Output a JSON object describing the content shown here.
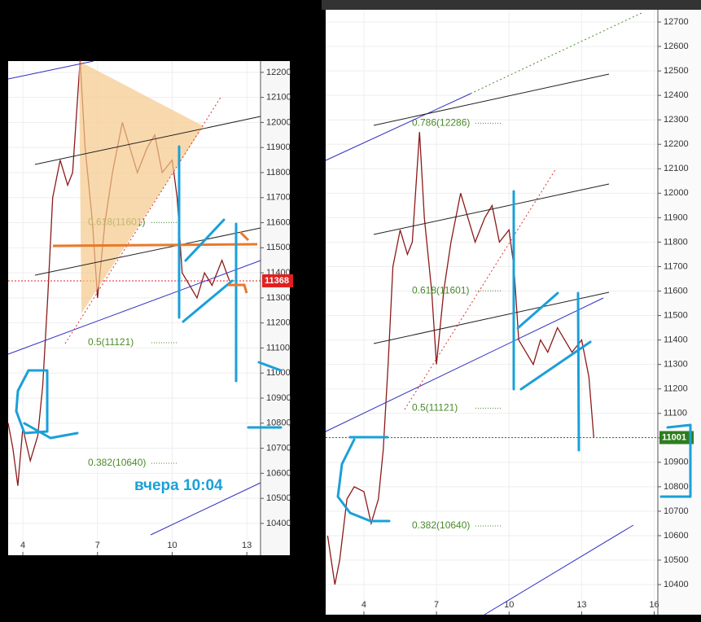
{
  "chart_data": [
    {
      "type": "line",
      "color": "#8b1a1a",
      "x": [
        3.41,
        3.6,
        3.8,
        4.0,
        4.3,
        4.6,
        4.8,
        5.0,
        5.2,
        5.5,
        5.8,
        6.0,
        6.3,
        6.5,
        6.8,
        7.0,
        7.3,
        7.6,
        8.0,
        8.3,
        8.6,
        9.0,
        9.3,
        9.6,
        10.0,
        10.2,
        10.4,
        10.7,
        11.0,
        11.3,
        11.6,
        12.0,
        12.3
      ],
      "values": [
        10800,
        10700,
        10550,
        10780,
        10650,
        10750,
        10950,
        11300,
        11700,
        11850,
        11750,
        11800,
        12250,
        11900,
        11600,
        11300,
        11600,
        11800,
        12000,
        11900,
        11800,
        11900,
        11950,
        11800,
        11850,
        11700,
        11400,
        11350,
        11300,
        11400,
        11350,
        11450,
        11368
      ],
      "xlim": [
        3.41,
        13.55
      ],
      "xticks": [
        4,
        7,
        10,
        13
      ],
      "ylim": [
        10273,
        12245
      ],
      "yticks": [
        10400,
        10500,
        10600,
        10700,
        10800,
        10900,
        11000,
        11100,
        11200,
        11300,
        11400,
        11500,
        11600,
        11700,
        11800,
        11900,
        12000,
        12100,
        12200
      ],
      "grid": true,
      "levels": [
        {
          "label": "0.618(11601)",
          "value": 11601
        },
        {
          "label": "0.5(11121)",
          "value": 11121
        },
        {
          "label": "0.382(10640)",
          "value": 10640
        }
      ],
      "last_price": {
        "value": 11368,
        "color": "#e02020"
      },
      "annotation": "вчера 10:04"
    },
    {
      "type": "line",
      "color": "#8b1a1a",
      "x": [
        2.5,
        2.8,
        3.0,
        3.3,
        3.6,
        4.0,
        4.3,
        4.6,
        4.8,
        5.0,
        5.2,
        5.5,
        5.8,
        6.0,
        6.3,
        6.5,
        6.8,
        7.0,
        7.3,
        7.6,
        8.0,
        8.3,
        8.6,
        9.0,
        9.3,
        9.6,
        10.0,
        10.2,
        10.4,
        10.7,
        11.0,
        11.3,
        11.6,
        12.0,
        12.3,
        12.6,
        13.0,
        13.3,
        13.5
      ],
      "values": [
        10600,
        10400,
        10500,
        10750,
        10800,
        10780,
        10650,
        10750,
        10950,
        11300,
        11700,
        11850,
        11750,
        11800,
        12250,
        11900,
        11600,
        11300,
        11600,
        11800,
        12000,
        11900,
        11800,
        11900,
        11950,
        11800,
        11850,
        11700,
        11400,
        11350,
        11300,
        11400,
        11350,
        11450,
        11400,
        11350,
        11400,
        11250,
        11001
      ],
      "xlim": [
        2.42,
        16.15
      ],
      "xticks": [
        4,
        7,
        10,
        13,
        16
      ],
      "ylim": [
        10277,
        12750
      ],
      "yticks": [
        10400,
        10500,
        10600,
        10700,
        10800,
        10900,
        11000,
        11100,
        11200,
        11300,
        11400,
        11500,
        11600,
        11700,
        11800,
        11900,
        12000,
        12100,
        12200,
        12300,
        12400,
        12500,
        12600,
        12700
      ],
      "grid": true,
      "levels": [
        {
          "label": "0.786(12286)",
          "value": 12286
        },
        {
          "label": "0.618(11601)",
          "value": 11601
        },
        {
          "label": "0.5(11121)",
          "value": 11121
        },
        {
          "label": "0.382(10640)",
          "value": 10640
        }
      ],
      "last_price": {
        "value": 11001,
        "color": "#2e7d1e"
      }
    }
  ]
}
